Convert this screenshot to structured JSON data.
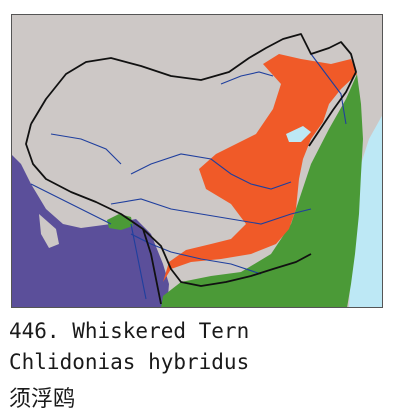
{
  "caption": {
    "number_line": "446. Whiskered Tern",
    "scientific_line": "Chlidonias hybridus",
    "chinese_line": "须浮鸥"
  },
  "legend": {
    "resident": {
      "color": "#4b9a37"
    },
    "breeding": {
      "color": "#f05a28"
    },
    "wintering": {
      "color": "#5b4f9a"
    }
  },
  "colors": {
    "land": "#cdc8c6",
    "sea": "#bde8f5",
    "border": "#111111",
    "river": "#1f3f9e"
  }
}
